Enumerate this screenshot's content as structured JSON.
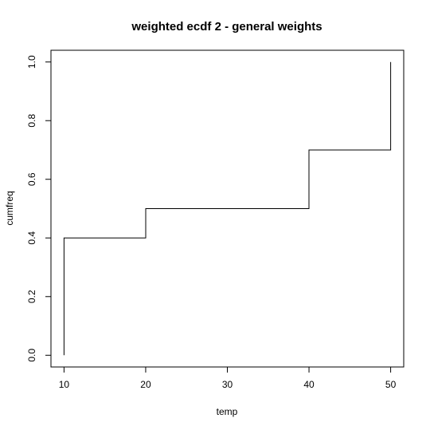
{
  "chart_data": {
    "type": "line",
    "title": "weighted ecdf 2 - general weights",
    "xlabel": "temp",
    "ylabel": "cumfreq",
    "x_ticks": [
      10,
      20,
      30,
      40,
      50
    ],
    "y_ticks": [
      "0.0",
      "0.2",
      "0.4",
      "0.6",
      "0.8",
      "1.0"
    ],
    "xlim": [
      8.4,
      51.6
    ],
    "ylim": [
      -0.04,
      1.04
    ],
    "grid": false,
    "step_points": [
      {
        "x": 10,
        "y": 0.0
      },
      {
        "x": 10,
        "y": 0.4
      },
      {
        "x": 20,
        "y": 0.4
      },
      {
        "x": 20,
        "y": 0.5
      },
      {
        "x": 40,
        "y": 0.5
      },
      {
        "x": 40,
        "y": 0.7
      },
      {
        "x": 50,
        "y": 0.7
      },
      {
        "x": 50,
        "y": 1.0
      }
    ]
  }
}
